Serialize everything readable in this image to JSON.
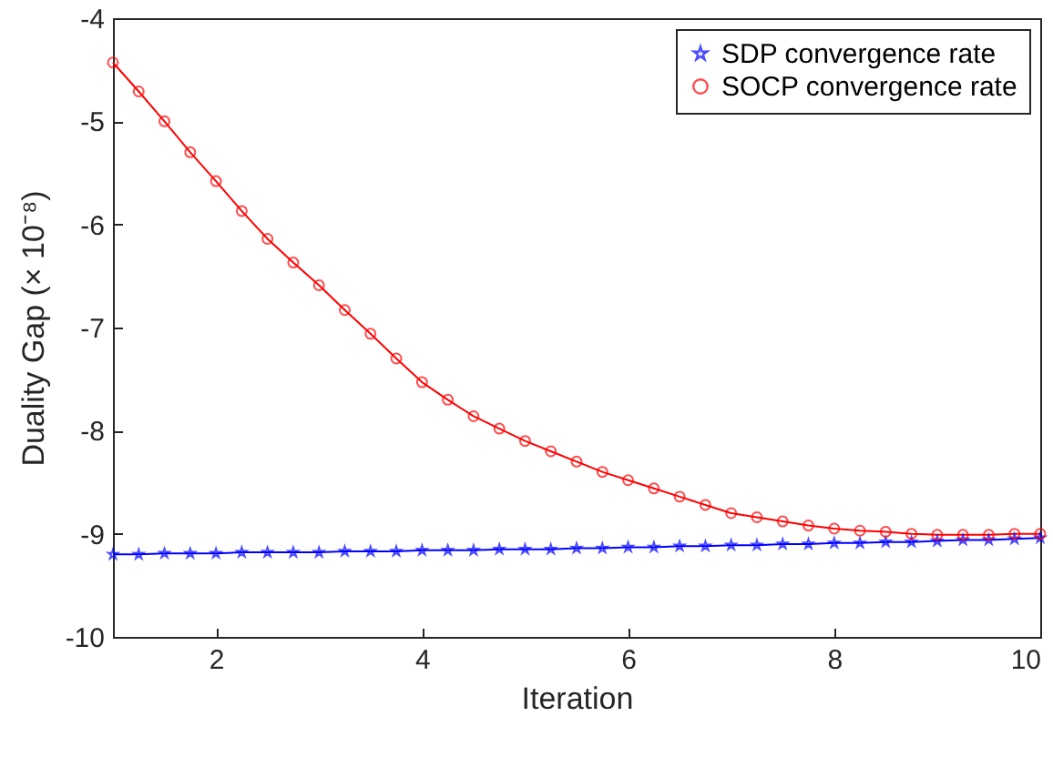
{
  "chart_data": {
    "type": "line",
    "xlabel": "Iteration",
    "ylabel": "Duality Gap (× 10⁻⁸)",
    "x": [
      1,
      1.25,
      1.5,
      1.75,
      2,
      2.25,
      2.5,
      2.75,
      3,
      3.25,
      3.5,
      3.75,
      4,
      4.25,
      4.5,
      4.75,
      5,
      5.25,
      5.5,
      5.75,
      6,
      6.25,
      6.5,
      6.75,
      7,
      7.25,
      7.5,
      7.75,
      8,
      8.25,
      8.5,
      8.75,
      9,
      9.25,
      9.5,
      9.75,
      10
    ],
    "series": [
      {
        "name": "SDP convergence rate",
        "color": "#0000ff",
        "marker": "star",
        "values": [
          -9.2,
          -9.2,
          -9.19,
          -9.19,
          -9.19,
          -9.18,
          -9.18,
          -9.18,
          -9.18,
          -9.17,
          -9.17,
          -9.17,
          -9.16,
          -9.16,
          -9.16,
          -9.15,
          -9.15,
          -9.15,
          -9.14,
          -9.14,
          -9.13,
          -9.13,
          -9.12,
          -9.12,
          -9.11,
          -9.11,
          -9.1,
          -9.1,
          -9.09,
          -9.09,
          -9.08,
          -9.08,
          -9.07,
          -9.06,
          -9.06,
          -9.05,
          -9.04
        ]
      },
      {
        "name": "SOCP convergence rate",
        "color": "#ff0000",
        "marker": "circle",
        "values": [
          -4.43,
          -4.71,
          -5.0,
          -5.3,
          -5.58,
          -5.87,
          -6.14,
          -6.37,
          -6.59,
          -6.83,
          -7.06,
          -7.3,
          -7.53,
          -7.7,
          -7.86,
          -7.98,
          -8.1,
          -8.2,
          -8.3,
          -8.4,
          -8.48,
          -8.56,
          -8.64,
          -8.72,
          -8.8,
          -8.84,
          -8.88,
          -8.92,
          -8.95,
          -8.97,
          -8.98,
          -9.0,
          -9.01,
          -9.01,
          -9.01,
          -9.0,
          -9.0
        ]
      }
    ],
    "xlim": [
      1,
      10
    ],
    "xticks": [
      2,
      4,
      6,
      8,
      10
    ],
    "ylim": [
      -10,
      -4
    ],
    "yticks": [
      -10,
      -9,
      -8,
      -7,
      -6,
      -5,
      -4
    ],
    "grid": false,
    "legend": "top right",
    "line_style": "solid"
  }
}
